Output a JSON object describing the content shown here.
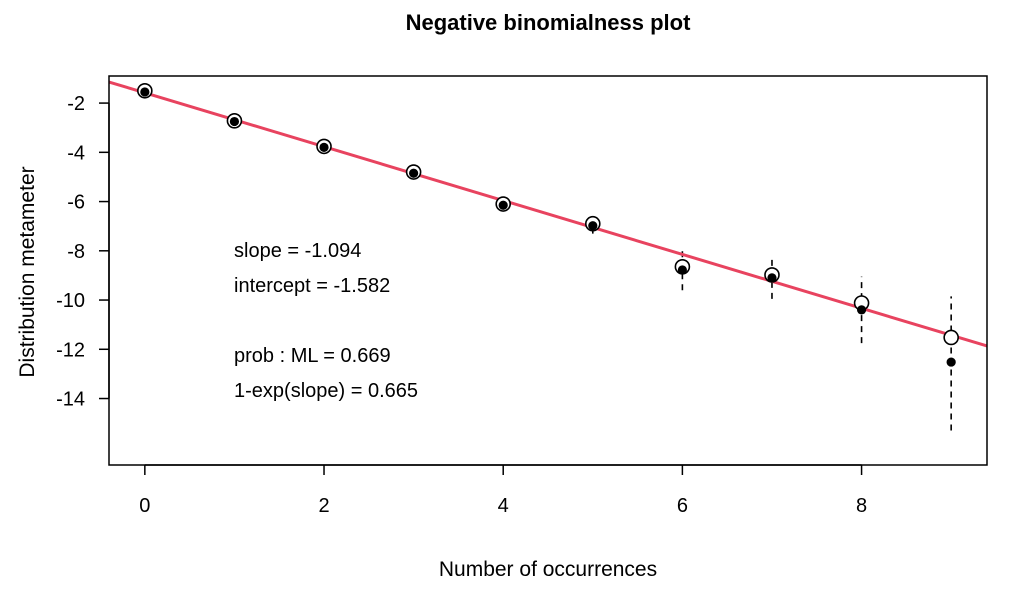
{
  "chart_data": {
    "type": "scatter",
    "title": "Negative binomialness plot",
    "xlabel": "Number of occurrences",
    "ylabel": "Distribution metameter",
    "xlim": [
      -0.4,
      9.4
    ],
    "ylim": [
      -16.7,
      -0.9
    ],
    "x_ticks": [
      0,
      2,
      4,
      6,
      8
    ],
    "y_ticks": [
      -2,
      -4,
      -6,
      -8,
      -10,
      -12,
      -14
    ],
    "grid": false,
    "x": [
      0,
      1,
      2,
      3,
      4,
      5,
      6,
      7,
      8,
      9
    ],
    "metameter": [
      -1.5,
      -2.72,
      -3.76,
      -4.8,
      -6.1,
      -6.9,
      -8.65,
      -8.98,
      -10.12,
      -11.52
    ],
    "centered": [
      -1.55,
      -2.75,
      -3.8,
      -4.85,
      -6.15,
      -6.98,
      -8.78,
      -9.1,
      -10.4,
      -12.52
    ],
    "ci_lower": [
      -1.7,
      -2.9,
      -3.95,
      -5.0,
      -6.35,
      -7.3,
      -9.6,
      -9.95,
      -11.75,
      -15.3
    ],
    "ci_upper": [
      -1.4,
      -2.6,
      -3.65,
      -4.7,
      -5.95,
      -6.65,
      -7.95,
      -8.3,
      -9.05,
      -9.85
    ],
    "fit": {
      "slope": -1.094,
      "intercept": -1.582,
      "color": "#e8435f"
    },
    "annotations": [
      "slope = -1.094",
      "intercept = -1.582",
      "prob : ML = 0.669",
      "1-exp(slope) = 0.665"
    ]
  }
}
